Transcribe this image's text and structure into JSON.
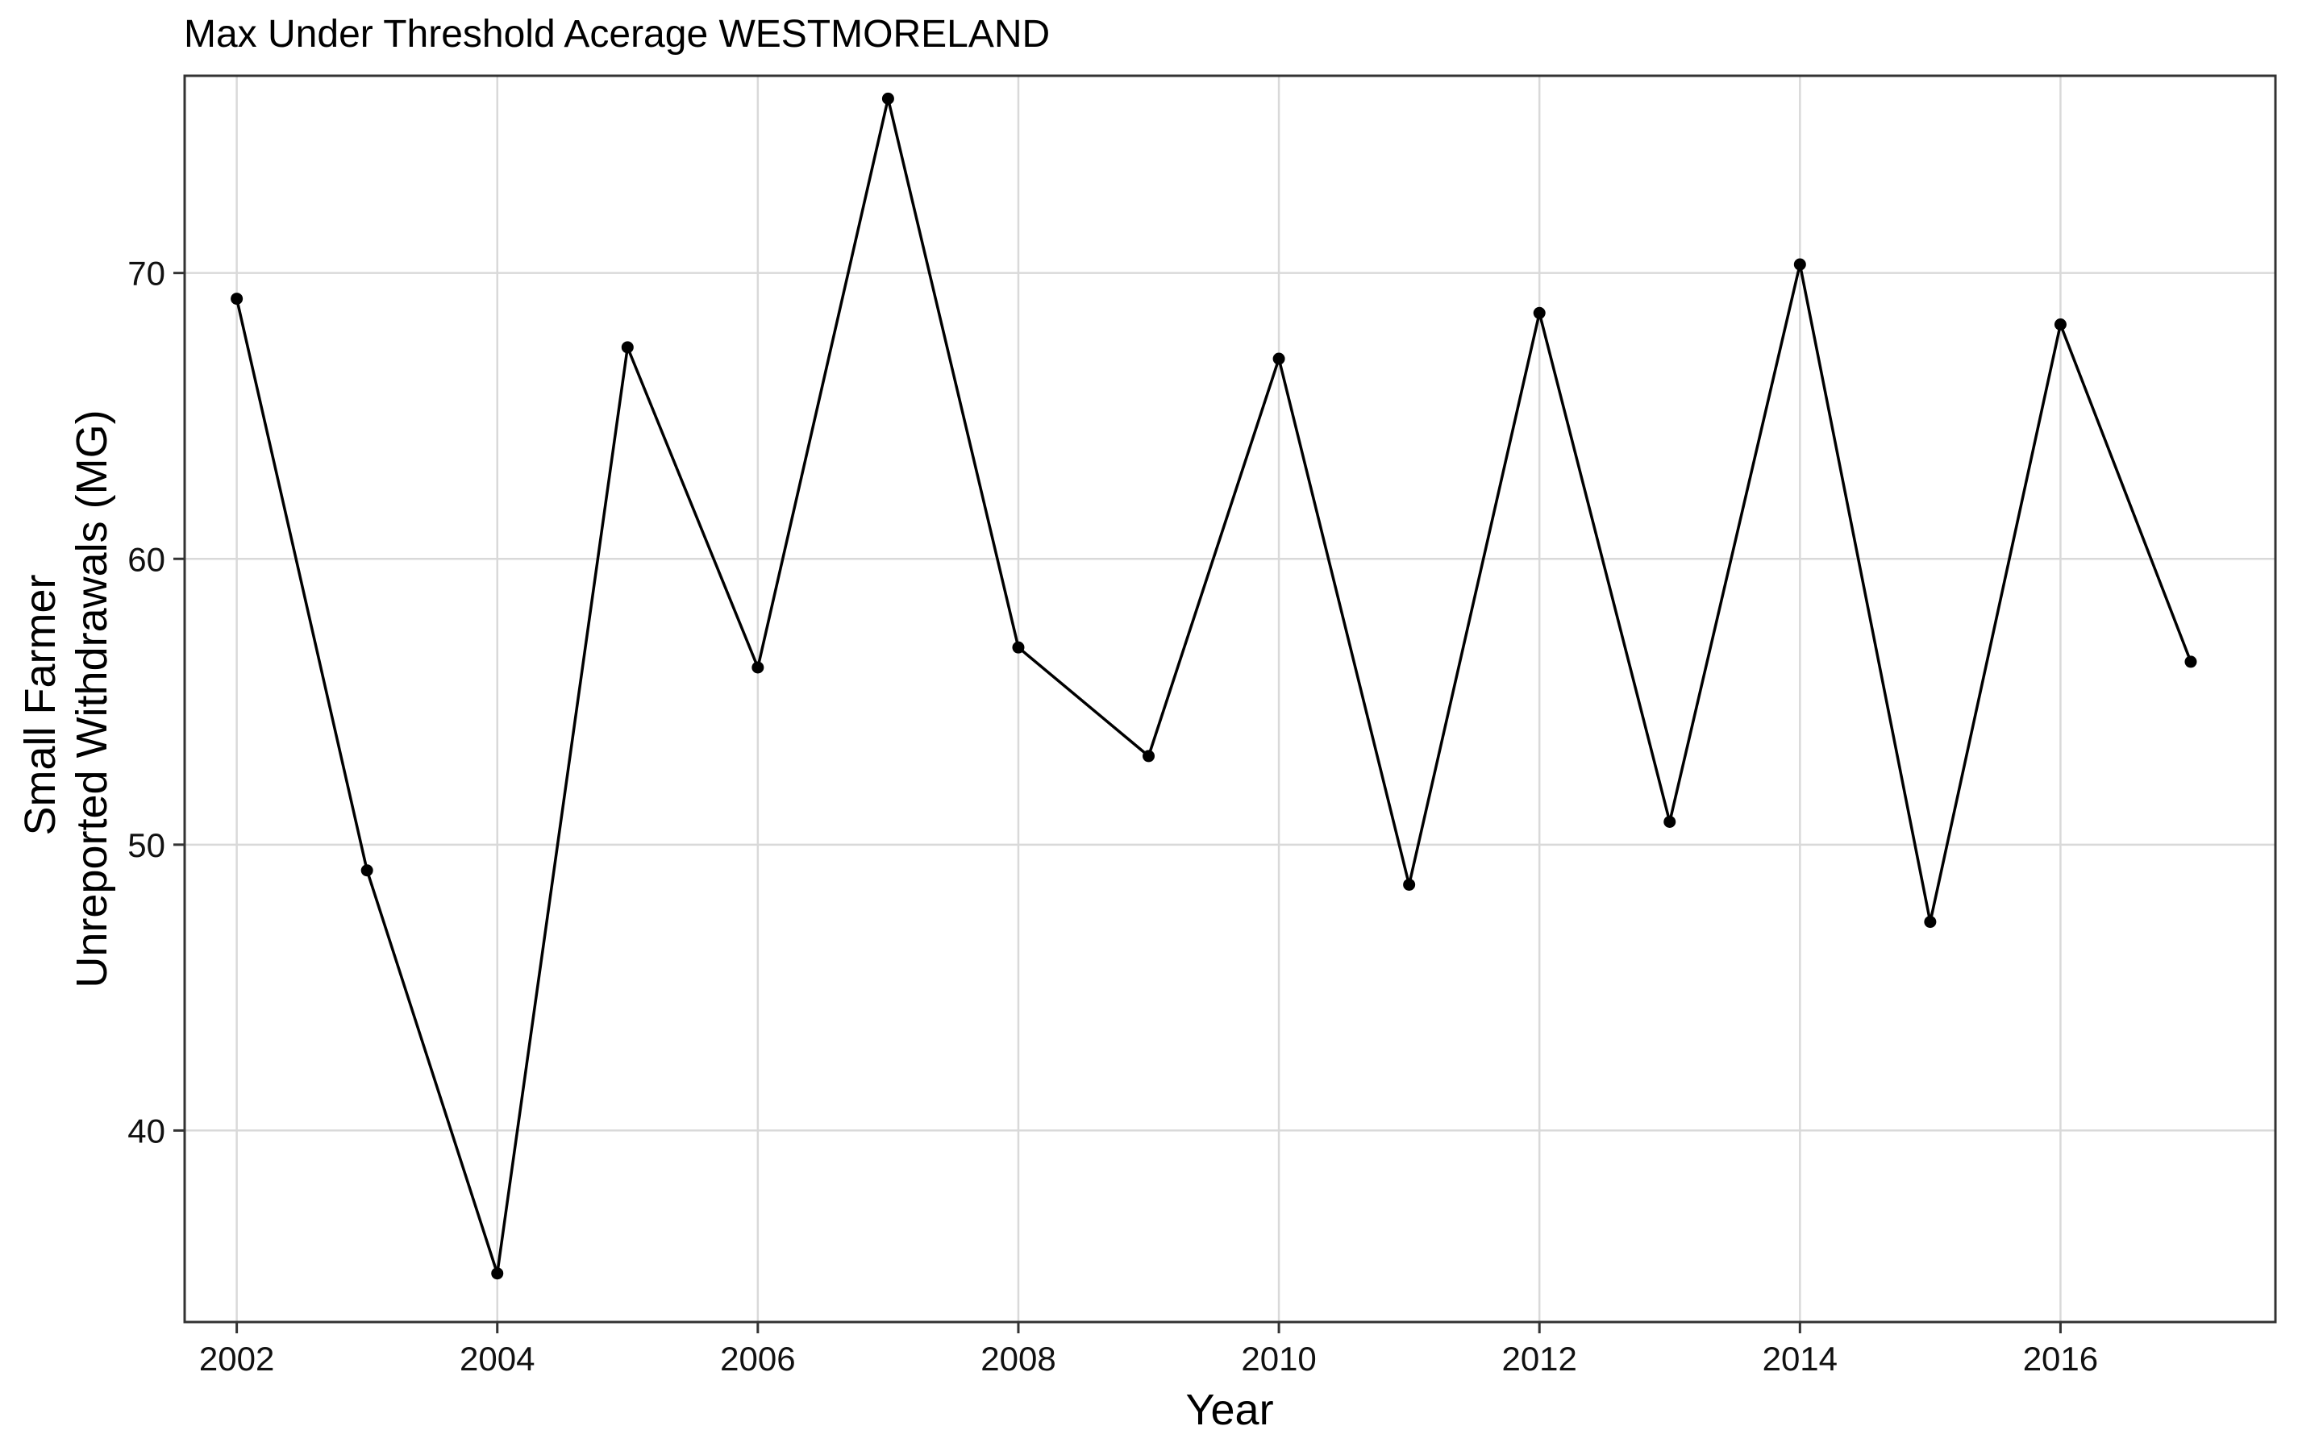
{
  "chart_data": {
    "type": "line",
    "title": "Max Under Threshold Acerage WESTMORELAND",
    "xlabel": "Year",
    "ylabel_lines": [
      "Small Farmer",
      "Unreported Withdrawals (MG)"
    ],
    "xlim": [
      2001.6,
      2017.65
    ],
    "ylim": [
      33.3,
      76.9
    ],
    "x_ticks": [
      2002,
      2004,
      2006,
      2008,
      2010,
      2012,
      2014,
      2016
    ],
    "y_ticks": [
      40,
      50,
      60,
      70
    ],
    "grid": true,
    "legend": "none",
    "series": [
      {
        "x": [
          2002,
          2003,
          2004,
          2005,
          2006,
          2007,
          2008,
          2009,
          2010,
          2011,
          2012,
          2013,
          2014,
          2015,
          2016,
          2017
        ],
        "values": [
          69.1,
          49.1,
          35.0,
          67.4,
          56.2,
          76.1,
          56.9,
          53.1,
          67.0,
          48.6,
          68.6,
          50.8,
          70.3,
          47.3,
          68.2,
          56.4
        ]
      }
    ],
    "colors": {
      "line": "#000000",
      "grid": "#d9d9d9",
      "panel_border": "#333333"
    }
  }
}
